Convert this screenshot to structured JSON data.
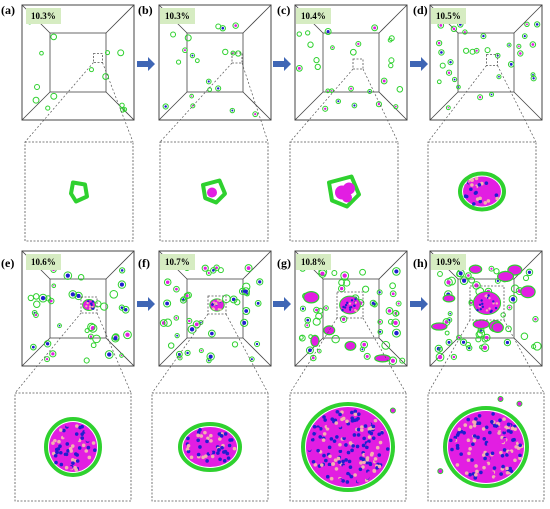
{
  "colors": {
    "box_edge": "#444444",
    "zoom_dash": "#555555",
    "badge_bg": "#d6ecc2",
    "arrow": "#3f66b5",
    "outline_green": "#2fd12f",
    "atom_magenta": "#e21ee2",
    "atom_blue": "#1f1fcf",
    "atom_pink": "#f3b1b1"
  },
  "panels": [
    {
      "letter": "(a)",
      "percentage": "10.3%"
    },
    {
      "letter": "(b)",
      "percentage": "10.3%"
    },
    {
      "letter": "(c)",
      "percentage": "10.4%"
    },
    {
      "letter": "(d)",
      "percentage": "10.5%"
    },
    {
      "letter": "(e)",
      "percentage": "10.6%"
    },
    {
      "letter": "(f)",
      "percentage": "10.7%"
    },
    {
      "letter": "(g)",
      "percentage": "10.8%"
    },
    {
      "letter": "(h)",
      "percentage": "10.9%"
    }
  ]
}
